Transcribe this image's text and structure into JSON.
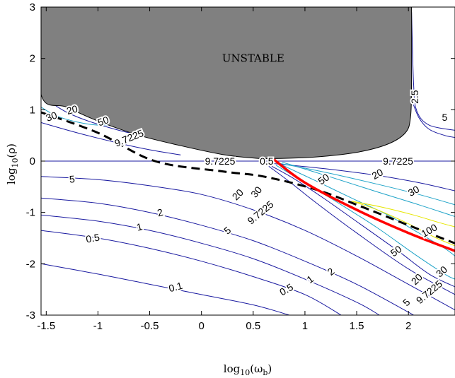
{
  "chart_data": {
    "type": "contour",
    "xlabel_base": "log",
    "xlabel_sub": "10",
    "xlabel_var": "(ω",
    "xlabel_var_sub": "b",
    "xlabel_close": ")",
    "ylabel_base": "log",
    "ylabel_sub": "10",
    "ylabel_var": "(ρ)",
    "xlim": [
      -1.55,
      2.45
    ],
    "ylim": [
      -3,
      3
    ],
    "x_ticks": [
      -1.5,
      -1,
      -0.5,
      0,
      0.5,
      1,
      1.5,
      2
    ],
    "x_tick_labels": [
      "-1.5",
      "-1",
      "-0.5",
      "0",
      "0.5",
      "1",
      "1.5",
      "2"
    ],
    "y_ticks": [
      -3,
      -2,
      -1,
      0,
      1,
      2,
      3
    ],
    "y_tick_labels": [
      "-3",
      "-2",
      "-1",
      "0",
      "1",
      "2",
      "3"
    ],
    "colors": {
      "unstable_fill": "#808080",
      "red_curve": "#ff0000",
      "dashed_curve": "#000000",
      "low_level": "#1a1aa0",
      "mid_level": "#1fa3c8",
      "high_level": "#e6e600"
    },
    "unstable_region": {
      "label": "UNSTABLE",
      "label_pos": [
        0.5,
        2.0
      ],
      "boundary": [
        [
          -1.55,
          3
        ],
        [
          -1.55,
          1.3
        ],
        [
          -1.3,
          1.05
        ],
        [
          -1.0,
          0.78
        ],
        [
          -0.6,
          0.5
        ],
        [
          -0.2,
          0.3
        ],
        [
          0.2,
          0.13
        ],
        [
          0.5,
          0.06
        ],
        [
          0.7,
          0.05
        ],
        [
          1.1,
          0.08
        ],
        [
          1.5,
          0.17
        ],
        [
          1.8,
          0.33
        ],
        [
          1.97,
          0.55
        ],
        [
          2.02,
          0.85
        ],
        [
          2.03,
          1.5
        ],
        [
          2.03,
          3
        ]
      ]
    },
    "contours": [
      {
        "level": "0.1",
        "color": "#1a1aa0",
        "points": [
          [
            -1.55,
            -2.0
          ],
          [
            -1.0,
            -2.2
          ],
          [
            -0.5,
            -2.4
          ],
          [
            0,
            -2.6
          ],
          [
            0.5,
            -2.8
          ],
          [
            0.85,
            -3.0
          ]
        ]
      },
      {
        "level": "0.5",
        "color": "#1a1aa0",
        "points": [
          [
            -1.55,
            -1.35
          ],
          [
            -1.0,
            -1.5
          ],
          [
            -0.5,
            -1.7
          ],
          [
            0,
            -1.95
          ],
          [
            0.5,
            -2.25
          ],
          [
            1.0,
            -2.6
          ],
          [
            1.35,
            -3.0
          ]
        ]
      },
      {
        "level": "1",
        "color": "#1a1aa0",
        "points": [
          [
            -1.55,
            -1.05
          ],
          [
            -1.0,
            -1.17
          ],
          [
            -0.5,
            -1.35
          ],
          [
            0,
            -1.6
          ],
          [
            0.5,
            -1.9
          ],
          [
            1.0,
            -2.3
          ],
          [
            1.5,
            -2.75
          ],
          [
            1.72,
            -3.0
          ]
        ]
      },
      {
        "level": "2",
        "color": "#1a1aa0",
        "points": [
          [
            -1.55,
            -0.72
          ],
          [
            -1.0,
            -0.82
          ],
          [
            -0.5,
            -1.0
          ],
          [
            0,
            -1.25
          ],
          [
            0.5,
            -1.55
          ],
          [
            1.0,
            -1.95
          ],
          [
            1.5,
            -2.4
          ],
          [
            2.05,
            -3.0
          ]
        ]
      },
      {
        "level": "5",
        "color": "#1a1aa0",
        "points": [
          [
            -1.55,
            -0.3
          ],
          [
            -1.0,
            -0.36
          ],
          [
            -0.5,
            -0.48
          ],
          [
            0,
            -0.65
          ],
          [
            0.5,
            -0.95
          ],
          [
            1.0,
            -1.35
          ],
          [
            1.5,
            -1.85
          ],
          [
            2.0,
            -2.4
          ],
          [
            2.45,
            -2.9
          ]
        ]
      },
      {
        "level": "9.7225",
        "color": "#1a1aa0",
        "points": [
          [
            -1.55,
            0
          ],
          [
            2.45,
            0
          ]
        ]
      },
      {
        "level": "9.7225",
        "color": "#1a1aa0",
        "points": [
          [
            -1.55,
            0.75
          ],
          [
            -1.2,
            0.55
          ],
          [
            -0.8,
            0.35
          ],
          [
            -0.5,
            0.22
          ],
          [
            -0.2,
            0.12
          ]
        ]
      },
      {
        "level": "9.7225",
        "color": "#1a1aa0",
        "points": [
          [
            0.65,
            -0.1
          ],
          [
            0.85,
            -0.4
          ],
          [
            1.1,
            -0.8
          ],
          [
            1.5,
            -1.4
          ],
          [
            2.0,
            -2.1
          ],
          [
            2.45,
            -2.6
          ]
        ]
      },
      {
        "level": "20",
        "color": "#1a1aa0",
        "points": [
          [
            -1.5,
            1.2
          ],
          [
            -1.3,
            0.95
          ],
          [
            -1.05,
            0.75
          ],
          [
            -0.7,
            0.55
          ],
          [
            -0.35,
            0.42
          ]
        ]
      },
      {
        "level": "20",
        "color": "#1a1aa0",
        "points": [
          [
            0.68,
            -0.1
          ],
          [
            0.9,
            -0.35
          ],
          [
            1.2,
            -0.75
          ],
          [
            1.55,
            -1.25
          ],
          [
            1.9,
            -1.75
          ],
          [
            2.2,
            -2.2
          ],
          [
            2.45,
            -2.45
          ]
        ]
      },
      {
        "level": "20",
        "color": "#1a1aa0",
        "points": [
          [
            0.7,
            -0.05
          ],
          [
            1.2,
            -0.15
          ],
          [
            1.7,
            -0.28
          ],
          [
            2.1,
            -0.42
          ],
          [
            2.45,
            -0.58
          ]
        ]
      },
      {
        "level": "30",
        "color": "#1fa3c8",
        "points": [
          [
            -1.55,
            1.05
          ],
          [
            -1.4,
            0.88
          ],
          [
            -1.2,
            0.76
          ],
          [
            -1.0,
            0.7
          ],
          [
            -0.85,
            0.72
          ]
        ]
      },
      {
        "level": "30",
        "color": "#1fa3c8",
        "points": [
          [
            0.72,
            -0.08
          ],
          [
            1.0,
            -0.42
          ],
          [
            1.35,
            -0.85
          ],
          [
            1.7,
            -1.3
          ],
          [
            2.05,
            -1.8
          ],
          [
            2.35,
            -2.2
          ],
          [
            2.45,
            -2.3
          ]
        ]
      },
      {
        "level": "30",
        "color": "#1fa3c8",
        "points": [
          [
            0.72,
            -0.03
          ],
          [
            1.2,
            -0.22
          ],
          [
            1.7,
            -0.45
          ],
          [
            2.1,
            -0.65
          ],
          [
            2.45,
            -0.85
          ]
        ]
      },
      {
        "level": "50",
        "color": "#1fa3c8",
        "points": [
          [
            0.75,
            -0.05
          ],
          [
            1.1,
            -0.38
          ],
          [
            1.45,
            -0.72
          ],
          [
            1.8,
            -1.05
          ],
          [
            2.1,
            -1.4
          ],
          [
            2.35,
            -1.7
          ],
          [
            2.45,
            -1.85
          ]
        ]
      },
      {
        "level": "50",
        "color": "#1fa3c8",
        "points": [
          [
            0.78,
            -0.02
          ],
          [
            1.2,
            -0.28
          ],
          [
            1.7,
            -0.6
          ],
          [
            2.1,
            -0.85
          ],
          [
            2.45,
            -1.08
          ]
        ]
      },
      {
        "level": "100",
        "color": "#e6e600",
        "points": [
          [
            1.45,
            -0.78
          ],
          [
            1.7,
            -0.95
          ],
          [
            2.0,
            -1.22
          ],
          [
            2.25,
            -1.48
          ],
          [
            2.45,
            -1.65
          ]
        ]
      },
      {
        "level": "100",
        "color": "#e6e600",
        "points": [
          [
            1.45,
            -0.78
          ],
          [
            1.75,
            -0.9
          ],
          [
            2.05,
            -1.05
          ],
          [
            2.3,
            -1.2
          ],
          [
            2.45,
            -1.28
          ]
        ]
      },
      {
        "level": "5",
        "color": "#1a1aa0",
        "points": [
          [
            2.03,
            1.2
          ],
          [
            2.1,
            0.85
          ],
          [
            2.2,
            0.62
          ],
          [
            2.35,
            0.5
          ],
          [
            2.45,
            0.46
          ]
        ]
      },
      {
        "level": "2.5",
        "color": "#1a1aa0",
        "points": [
          [
            2.03,
            2.9
          ],
          [
            2.05,
            1.5
          ],
          [
            2.08,
            0.98
          ],
          [
            2.2,
            0.7
          ],
          [
            2.45,
            0.6
          ]
        ]
      }
    ],
    "contour_labels": [
      {
        "text": "30",
        "x": -1.45,
        "y": 0.87,
        "angle": -20
      },
      {
        "text": "20",
        "x": -1.25,
        "y": 1.0,
        "angle": -15
      },
      {
        "text": "50",
        "x": -0.95,
        "y": 0.78,
        "angle": -20
      },
      {
        "text": "9.7225",
        "x": -0.7,
        "y": 0.45,
        "angle": -22
      },
      {
        "text": "9.7225",
        "x": 0.18,
        "y": 0,
        "angle": 0
      },
      {
        "text": "9.7225",
        "x": 1.9,
        "y": 0,
        "angle": 0
      },
      {
        "text": "5",
        "x": -1.25,
        "y": -0.35,
        "angle": -5
      },
      {
        "text": "2",
        "x": -0.4,
        "y": -1.0,
        "angle": -15
      },
      {
        "text": "1",
        "x": -0.6,
        "y": -1.28,
        "angle": -15
      },
      {
        "text": "0.5",
        "x": -1.05,
        "y": -1.5,
        "angle": -10
      },
      {
        "text": "0.1",
        "x": -0.25,
        "y": -2.45,
        "angle": -15
      },
      {
        "text": "0.5",
        "x": 0.82,
        "y": -2.5,
        "angle": -30
      },
      {
        "text": "1",
        "x": 1.05,
        "y": -2.3,
        "angle": -35
      },
      {
        "text": "2",
        "x": 1.25,
        "y": -2.15,
        "angle": -40
      },
      {
        "text": "20",
        "x": 0.35,
        "y": -0.65,
        "angle": -45
      },
      {
        "text": "30",
        "x": 0.53,
        "y": -0.6,
        "angle": -50
      },
      {
        "text": "9.7225",
        "x": 0.57,
        "y": -1.0,
        "angle": -40
      },
      {
        "text": "5",
        "x": 0.25,
        "y": -1.35,
        "angle": -40
      },
      {
        "text": "50",
        "x": 1.18,
        "y": -0.35,
        "angle": -35
      },
      {
        "text": "20",
        "x": 1.7,
        "y": -0.25,
        "angle": -30
      },
      {
        "text": "30",
        "x": 2.05,
        "y": -0.58,
        "angle": -30
      },
      {
        "text": "100",
        "x": 2.2,
        "y": -1.35,
        "angle": -30
      },
      {
        "text": "50",
        "x": 1.88,
        "y": -1.75,
        "angle": -35
      },
      {
        "text": "30",
        "x": 2.32,
        "y": -2.15,
        "angle": -40
      },
      {
        "text": "20",
        "x": 2.08,
        "y": -2.3,
        "angle": -45
      },
      {
        "text": "9.7225",
        "x": 2.2,
        "y": -2.55,
        "angle": -40
      },
      {
        "text": "5",
        "x": 1.98,
        "y": -2.75,
        "angle": -45
      },
      {
        "text": "5",
        "x": 2.35,
        "y": 0.85,
        "angle": 0
      },
      {
        "text": "2.5",
        "x": 2.06,
        "y": 1.25,
        "angle": -90
      },
      {
        "text": "0.5",
        "x": 0.63,
        "y": 0,
        "angle": 0
      }
    ],
    "red_curve": [
      [
        0.7,
        0.03
      ],
      [
        1.0,
        -0.42
      ],
      [
        1.5,
        -0.95
      ],
      [
        2.0,
        -1.4
      ],
      [
        2.45,
        -1.75
      ]
    ],
    "dashed_curve": [
      [
        -1.55,
        0.95
      ],
      [
        -1.0,
        0.55
      ],
      [
        -0.45,
        0.0
      ],
      [
        0.2,
        -0.2
      ],
      [
        0.6,
        -0.3
      ],
      [
        1.1,
        -0.55
      ],
      [
        1.5,
        -0.85
      ],
      [
        2.0,
        -1.25
      ],
      [
        2.45,
        -1.6
      ]
    ]
  }
}
